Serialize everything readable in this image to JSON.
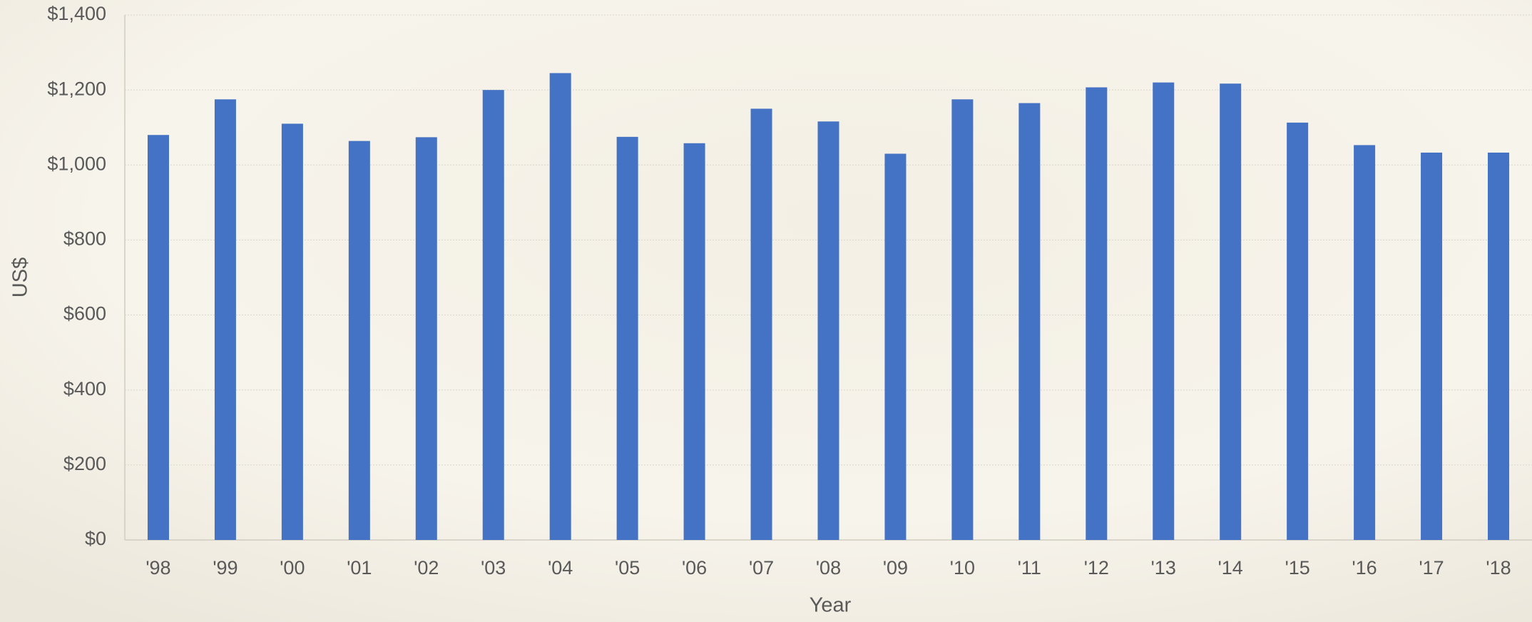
{
  "chart_data": {
    "type": "bar",
    "x_label": "Year",
    "y_label": "US$",
    "categories": [
      "'98",
      "'99",
      "'00",
      "'01",
      "'02",
      "'03",
      "'04",
      "'05",
      "'06",
      "'07",
      "'08",
      "'09",
      "'10",
      "'11",
      "'12",
      "'13",
      "'14",
      "'15",
      "'16",
      "'17",
      "'18"
    ],
    "values": [
      1080,
      1175,
      1110,
      1064,
      1074,
      1200,
      1245,
      1075,
      1058,
      1150,
      1116,
      1030,
      1175,
      1165,
      1207,
      1220,
      1217,
      1113,
      1053,
      1033,
      1033
    ],
    "color": "#4472c4",
    "ylim": [
      0,
      1400
    ],
    "yticks": [
      {
        "value": 0,
        "label": "$0"
      },
      {
        "value": 200,
        "label": "$200"
      },
      {
        "value": 400,
        "label": "$400"
      },
      {
        "value": 600,
        "label": "$600"
      },
      {
        "value": 800,
        "label": "$800"
      },
      {
        "value": 1000,
        "label": "$1,000"
      },
      {
        "value": 1200,
        "label": "$1,200"
      },
      {
        "value": 1400,
        "label": "$1,400"
      }
    ],
    "grid": true
  }
}
